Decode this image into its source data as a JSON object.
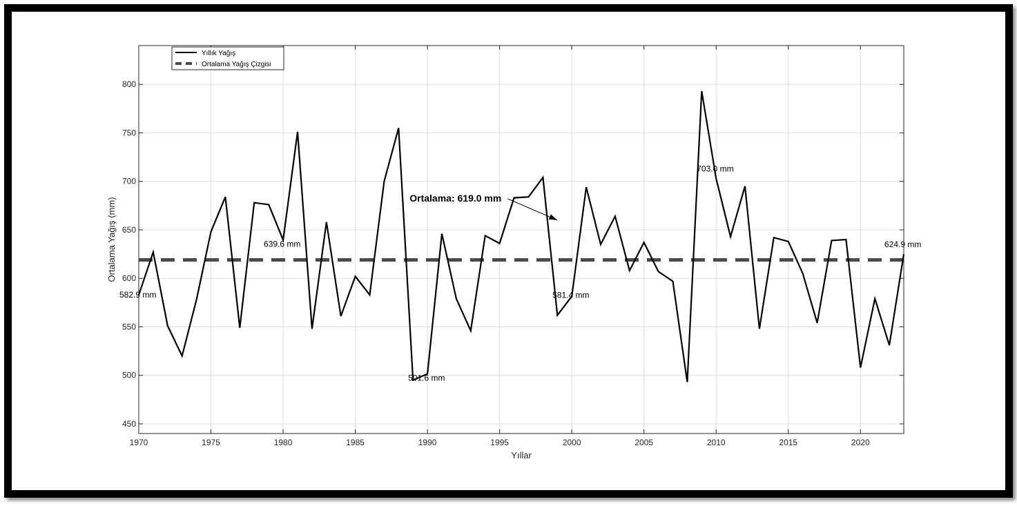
{
  "chart_data": {
    "type": "line",
    "xlabel": "Yıllar",
    "ylabel": "Ortalama Yağış (mm)",
    "xlim": [
      1970,
      2023
    ],
    "ylim": [
      440,
      840
    ],
    "xticks": [
      1970,
      1975,
      1980,
      1985,
      1990,
      1995,
      2000,
      2005,
      2010,
      2015,
      2020
    ],
    "yticks": [
      450,
      500,
      550,
      600,
      650,
      700,
      750,
      800
    ],
    "grid": true,
    "legend_position": "top-left",
    "series": [
      {
        "name": "Yıllık Yağış",
        "color": "#000000",
        "x": [
          1970,
          1971,
          1972,
          1973,
          1974,
          1975,
          1976,
          1977,
          1978,
          1979,
          1980,
          1981,
          1982,
          1983,
          1984,
          1985,
          1986,
          1987,
          1988,
          1989,
          1990,
          1991,
          1992,
          1993,
          1994,
          1995,
          1996,
          1997,
          1998,
          1999,
          2000,
          2001,
          2002,
          2003,
          2004,
          2005,
          2006,
          2007,
          2008,
          2009,
          2010,
          2011,
          2012,
          2013,
          2014,
          2015,
          2016,
          2017,
          2018,
          2019,
          2020,
          2021,
          2022,
          2023
        ],
        "y": [
          582.9,
          627,
          551,
          520,
          578,
          648,
          684,
          549,
          678,
          676,
          639.6,
          751,
          548,
          658,
          561,
          602,
          583,
          700,
          755,
          495,
          501.6,
          646,
          579,
          546,
          644,
          636,
          683,
          684,
          704,
          562,
          581.4,
          694,
          635,
          664,
          608,
          637,
          607,
          597,
          493,
          793,
          703.0,
          643,
          695,
          548,
          642,
          638,
          605,
          554,
          639,
          640,
          508,
          579,
          531,
          624.9
        ]
      },
      {
        "name": "Ortalama Yağış Çizgisi",
        "color": "#4a4a4a",
        "value": 619.0
      }
    ],
    "annotations": [
      {
        "x": 1970,
        "y": 582.9,
        "text": "582.9 mm"
      },
      {
        "x": 1980,
        "y": 639.6,
        "text": "639.6 mm"
      },
      {
        "x": 1990,
        "y": 501.6,
        "text": "501.6 mm"
      },
      {
        "x": 2000,
        "y": 581.4,
        "text": "581.4 mm"
      },
      {
        "x": 2010,
        "y": 703.0,
        "text": "703.0 mm"
      },
      {
        "x": 2023,
        "y": 624.9,
        "text": "624.9 mm"
      }
    ],
    "mean_annotation": {
      "text": "Ortalama: 619.0 mm",
      "x": 1999,
      "y": 660
    }
  }
}
